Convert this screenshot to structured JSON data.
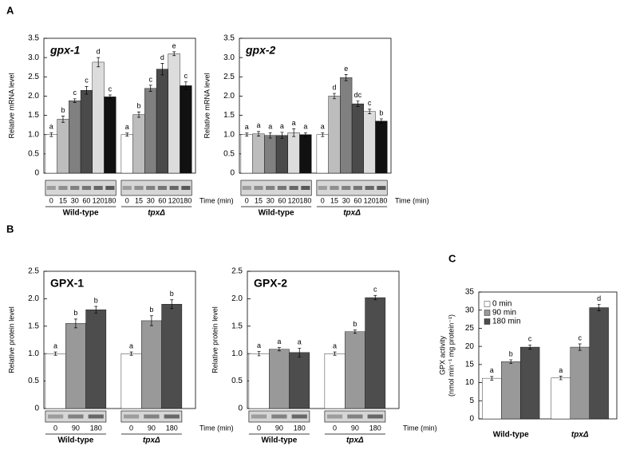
{
  "chart_data": [
    {
      "type": "bar",
      "panel": "A",
      "title": "gpx-1",
      "ylabel": "Relative mRNA level",
      "xlabel": "Time (min)",
      "categories": [
        "0",
        "15",
        "30",
        "60",
        "120",
        "180"
      ],
      "colors": [
        "#ffffff",
        "#bdbdbd",
        "#808080",
        "#4a4a4a",
        "#dcdcdc",
        "#111111"
      ],
      "series": [
        {
          "name": "Wild-type",
          "values": [
            1.0,
            1.4,
            1.88,
            2.15,
            2.88,
            1.98
          ],
          "errors": [
            0.05,
            0.08,
            0.05,
            0.1,
            0.12,
            0.05
          ],
          "annotations": [
            "a",
            "b",
            "c",
            "c",
            "d",
            "c"
          ]
        },
        {
          "name": "tpxΔ",
          "values": [
            1.0,
            1.52,
            2.2,
            2.7,
            3.1,
            2.27
          ],
          "errors": [
            0.04,
            0.07,
            0.08,
            0.15,
            0.05,
            0.1
          ],
          "annotations": [
            "a",
            "b",
            "c",
            "d",
            "e",
            "c"
          ]
        }
      ],
      "ylim": [
        0,
        3.5
      ],
      "yticks": [
        0,
        0.5,
        {
          "value": 1,
          "label": "1.0"
        },
        1.5,
        {
          "value": 2,
          "label": "2.0"
        },
        2.5,
        {
          "value": 3,
          "label": "3.0"
        },
        3.5
      ]
    },
    {
      "type": "bar",
      "title": "gpx-2",
      "ylabel": "Relative mRNA level",
      "xlabel": "Time (min)",
      "categories": [
        "0",
        "15",
        "30",
        "60",
        "120",
        "180"
      ],
      "colors": [
        "#ffffff",
        "#bdbdbd",
        "#808080",
        "#4a4a4a",
        "#dcdcdc",
        "#111111"
      ],
      "series": [
        {
          "name": "Wild-type",
          "values": [
            1.0,
            1.02,
            0.98,
            0.98,
            1.05,
            1.0
          ],
          "errors": [
            0.04,
            0.06,
            0.07,
            0.08,
            0.1,
            0.05
          ],
          "annotations": [
            "a",
            "a",
            "a",
            "a",
            "a",
            "a"
          ]
        },
        {
          "name": "tpxΔ",
          "values": [
            1.0,
            2.0,
            2.48,
            1.8,
            1.6,
            1.35
          ],
          "errors": [
            0.05,
            0.07,
            0.08,
            0.07,
            0.06,
            0.06
          ],
          "annotations": [
            "a",
            "d",
            "e",
            "dc",
            "c",
            "b"
          ]
        }
      ],
      "ylim": [
        0,
        3.5
      ],
      "yticks": [
        0,
        0.5,
        {
          "value": 1,
          "label": "1.0"
        },
        1.5,
        {
          "value": 2,
          "label": "2.0"
        },
        2.5,
        {
          "value": 3,
          "label": "3.0"
        },
        3.5
      ]
    },
    {
      "type": "bar",
      "panel": "B",
      "title": "GPX-1",
      "ylabel": "Relative protein level",
      "xlabel": "Time (min)",
      "categories": [
        "0",
        "90",
        "180"
      ],
      "colors": [
        "#ffffff",
        "#999999",
        "#4d4d4d"
      ],
      "series": [
        {
          "name": "Wild-type",
          "values": [
            1.0,
            1.55,
            1.8
          ],
          "errors": [
            0.03,
            0.08,
            0.06
          ],
          "annotations": [
            "a",
            "b",
            "b"
          ]
        },
        {
          "name": "tpxΔ",
          "values": [
            1.0,
            1.6,
            1.9
          ],
          "errors": [
            0.03,
            0.09,
            0.08
          ],
          "annotations": [
            "a",
            "b",
            "b"
          ]
        }
      ],
      "ylim": [
        0,
        2.5
      ],
      "yticks": [
        0,
        0.5,
        {
          "value": 1,
          "label": "1.0"
        },
        1.5,
        {
          "value": 2,
          "label": "2.0"
        },
        2.5
      ]
    },
    {
      "type": "bar",
      "title": "GPX-2",
      "ylabel": "Relative protein level",
      "xlabel": "Time (min)",
      "categories": [
        "0",
        "90",
        "180"
      ],
      "colors": [
        "#ffffff",
        "#999999",
        "#4d4d4d"
      ],
      "series": [
        {
          "name": "Wild-type",
          "values": [
            1.0,
            1.08,
            1.02
          ],
          "errors": [
            0.04,
            0.03,
            0.08
          ],
          "annotations": [
            "a",
            "a",
            "a"
          ]
        },
        {
          "name": "tpxΔ",
          "values": [
            1.0,
            1.4,
            2.02
          ],
          "errors": [
            0.03,
            0.03,
            0.04
          ],
          "annotations": [
            "a",
            "b",
            "c"
          ]
        }
      ],
      "ylim": [
        0,
        2.5
      ],
      "yticks": [
        0,
        0.5,
        {
          "value": 1,
          "label": "1.0"
        },
        1.5,
        {
          "value": 2,
          "label": "2.0"
        },
        2.5
      ]
    },
    {
      "type": "bar",
      "panel": "C",
      "ylabel": [
        "GPX activity",
        "(nmol min⁻¹ mg protein⁻¹)"
      ],
      "legend": true,
      "categories": [
        "0 min",
        "90 min",
        "180 min"
      ],
      "colors": [
        "#ffffff",
        "#999999",
        "#4d4d4d"
      ],
      "series": [
        {
          "name": "Wild-type",
          "values": [
            11.2,
            15.8,
            19.8
          ],
          "errors": [
            0.5,
            0.5,
            0.6
          ],
          "annotations": [
            "a",
            "b",
            "c"
          ]
        },
        {
          "name": "tpxΔ",
          "values": [
            11.3,
            19.8,
            30.7
          ],
          "errors": [
            0.5,
            0.9,
            0.9
          ],
          "annotations": [
            "a",
            "c",
            "d"
          ]
        }
      ],
      "ylim": [
        0,
        35
      ],
      "yticks": [
        0,
        5,
        10,
        15,
        20,
        25,
        30,
        35
      ]
    }
  ]
}
